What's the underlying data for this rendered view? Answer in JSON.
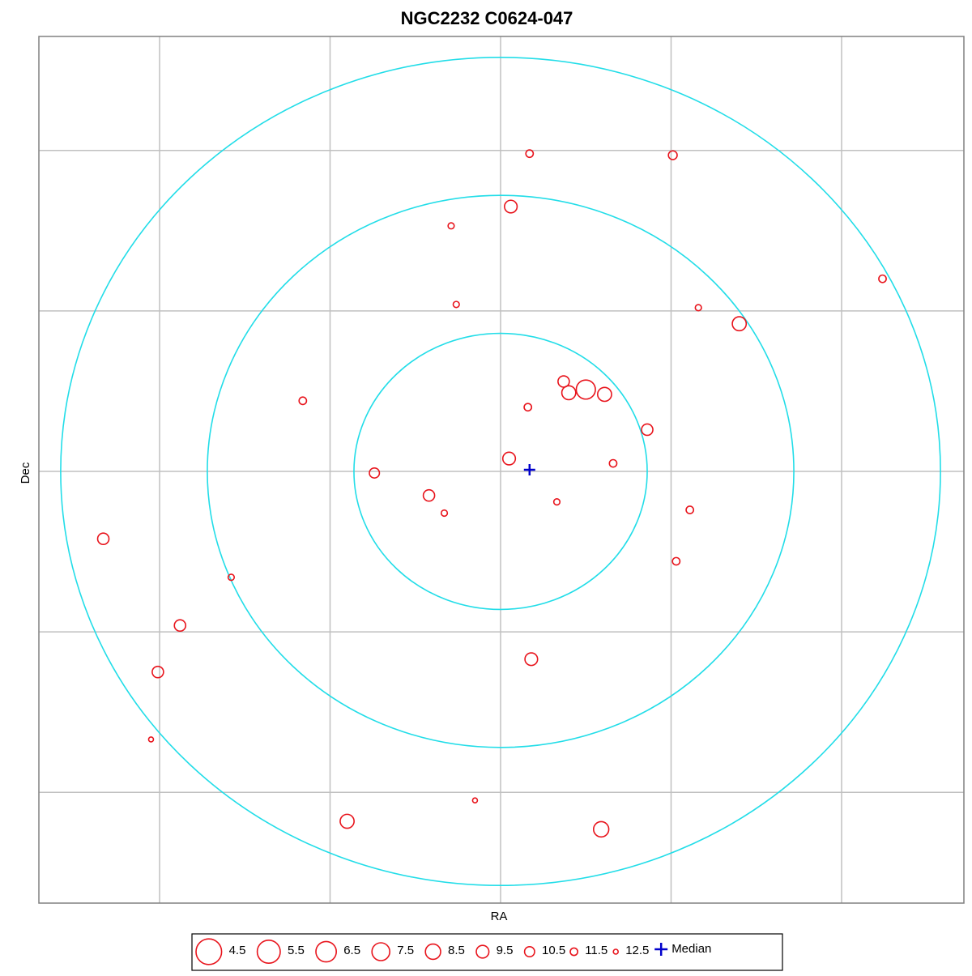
{
  "chart_data": {
    "type": "scatter",
    "title": "NGC2232  C0624-047",
    "x_label": "RA",
    "y_label": "Dec",
    "xlim": [
      -2.7,
      2.7
    ],
    "ylim": [
      -2.7,
      2.7
    ],
    "xticks": [
      -2,
      -1,
      0,
      1,
      2
    ],
    "yticks": [
      -2,
      -1,
      0,
      1,
      2
    ],
    "grid": true,
    "rings": [
      0.86,
      1.72,
      2.58
    ],
    "ring_color": "#22dde8",
    "color": "#e8141c",
    "x": [
      0.17,
      1.01,
      0.06,
      -0.29,
      2.24,
      -0.26,
      1.16,
      1.4,
      -1.16,
      0.37,
      0.4,
      0.5,
      0.61,
      0.16,
      0.86,
      0.05,
      0.66,
      -0.74,
      -0.42,
      -0.33,
      0.33,
      1.11,
      -2.33,
      1.03,
      -1.58,
      -1.88,
      -2.01,
      0.18,
      -2.05,
      -0.15,
      -0.9,
      0.59
    ],
    "y": [
      1.98,
      1.97,
      1.65,
      1.53,
      1.2,
      1.04,
      1.02,
      0.92,
      0.44,
      0.56,
      0.49,
      0.51,
      0.48,
      0.4,
      0.26,
      0.08,
      0.05,
      -0.01,
      -0.15,
      -0.26,
      -0.19,
      -0.24,
      -0.42,
      -0.56,
      -0.66,
      -0.96,
      -1.25,
      -1.17,
      -1.67,
      -2.05,
      -2.18,
      -2.23
    ],
    "mag": [
      11.5,
      11,
      9.5,
      12,
      11.5,
      12,
      12,
      9,
      11.5,
      10,
      9,
      7,
      9,
      11.5,
      10,
      9.5,
      11.5,
      10.5,
      10,
      12,
      12,
      11.5,
      10,
      11.5,
      12,
      10,
      10,
      9.5,
      12.5,
      12.5,
      9,
      8.5
    ],
    "size_legend": [
      4.5,
      5.5,
      6.5,
      7.5,
      8.5,
      9.5,
      10.5,
      11.5,
      12.5
    ],
    "median": {
      "name": "Median",
      "x": 0.17,
      "y": 0.01,
      "color": "#0000cc"
    }
  }
}
